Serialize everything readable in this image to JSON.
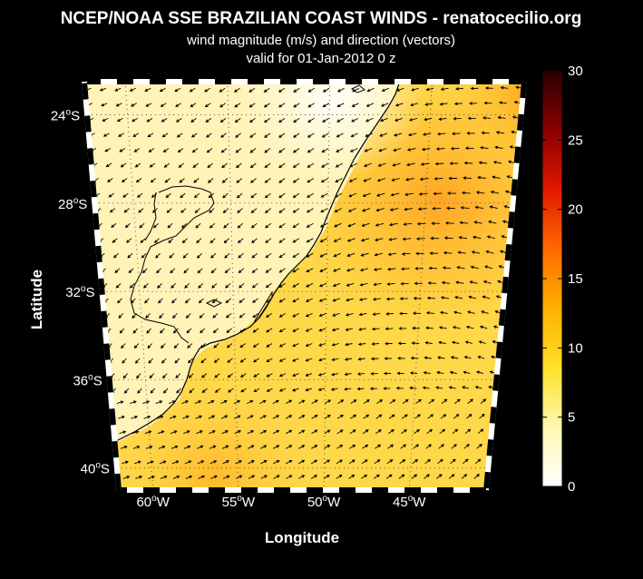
{
  "header": {
    "title": "NCEP/NOAA SSE BRAZILIAN COAST WINDS - renatocecilio.org",
    "subtitle": "wind magnitude (m/s) and direction (vectors)",
    "valid_line": "valid for 01-Jan-2012  0 z"
  },
  "axes": {
    "xlabel": "Longitude",
    "ylabel": "Latitude",
    "lon_ticks": [
      {
        "deg": "60",
        "hemi": "W",
        "value": -60
      },
      {
        "deg": "55",
        "hemi": "W",
        "value": -55
      },
      {
        "deg": "50",
        "hemi": "W",
        "value": -50
      },
      {
        "deg": "45",
        "hemi": "W",
        "value": -45
      }
    ],
    "lat_ticks": [
      {
        "deg": "24",
        "hemi": "S",
        "value": -24
      },
      {
        "deg": "28",
        "hemi": "S",
        "value": -28
      },
      {
        "deg": "32",
        "hemi": "S",
        "value": -32
      },
      {
        "deg": "36",
        "hemi": "S",
        "value": -36
      },
      {
        "deg": "40",
        "hemi": "S",
        "value": -40
      }
    ]
  },
  "colorbar": {
    "min": 0,
    "max": 30,
    "ticks": [
      "0",
      "5",
      "10",
      "15",
      "20",
      "25",
      "30"
    ],
    "stops": [
      "#ffffff",
      "#fff7b0",
      "#ffe02a",
      "#ffb000",
      "#ff6a00",
      "#e01800",
      "#8a0000",
      "#2a0000"
    ]
  },
  "map": {
    "land_color": "#fff3b8",
    "ocean_base_color": "#ffd84a",
    "vector_color": "#000000"
  }
}
